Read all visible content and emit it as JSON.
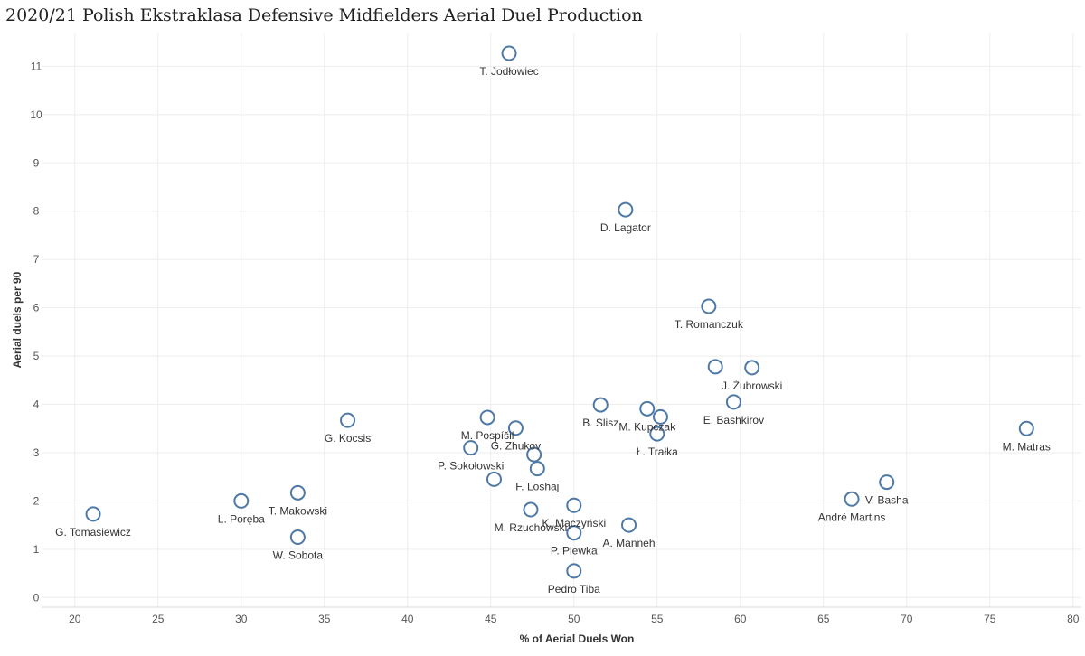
{
  "chart_data": {
    "type": "scatter",
    "title": "2020/21 Polish Ekstraklasa Defensive Midfielders Aerial Duel Production",
    "xlabel": "% of Aerial Duels Won",
    "ylabel": "Aerial duels per 90",
    "xlim": [
      18,
      80.5
    ],
    "ylim": [
      -0.2,
      11.7
    ],
    "xticks": [
      "20",
      "25",
      "30",
      "35",
      "40",
      "45",
      "50",
      "55",
      "60",
      "65",
      "70",
      "75",
      "80"
    ],
    "yticks": [
      "0",
      "1",
      "2",
      "3",
      "4",
      "5",
      "6",
      "7",
      "8",
      "9",
      "10",
      "11"
    ],
    "grid": true,
    "marker_color": "#4e79a7",
    "points": [
      {
        "label": "T. Jodłowiec",
        "x": 46.1,
        "y": 11.27
      },
      {
        "label": "D. Lagator",
        "x": 53.1,
        "y": 8.03
      },
      {
        "label": "T. Romanczuk",
        "x": 58.1,
        "y": 6.03
      },
      {
        "label": "J. Żubrowski",
        "x": 60.7,
        "y": 4.76
      },
      {
        "label": "",
        "x": 58.5,
        "y": 4.78
      },
      {
        "label": "M. Kupczak",
        "x": 54.4,
        "y": 3.91
      },
      {
        "label": "E. Bashkirov",
        "x": 59.6,
        "y": 4.05
      },
      {
        "label": "",
        "x": 55.2,
        "y": 3.74
      },
      {
        "label": "Ł. Trałka",
        "x": 55.0,
        "y": 3.39
      },
      {
        "label": "B. Slisz",
        "x": 51.6,
        "y": 3.99
      },
      {
        "label": "M. Pospíšil",
        "x": 44.8,
        "y": 3.73
      },
      {
        "label": "G. Zhukov",
        "x": 46.5,
        "y": 3.51
      },
      {
        "label": "G. Kocsis",
        "x": 36.4,
        "y": 3.67
      },
      {
        "label": "P. Sokołowski",
        "x": 43.8,
        "y": 3.1
      },
      {
        "label": "",
        "x": 47.6,
        "y": 2.96
      },
      {
        "label": "F. Loshaj",
        "x": 47.8,
        "y": 2.67
      },
      {
        "label": "",
        "x": 45.2,
        "y": 2.45
      },
      {
        "label": "M. Matras",
        "x": 77.2,
        "y": 3.5
      },
      {
        "label": "V. Basha",
        "x": 68.8,
        "y": 2.39
      },
      {
        "label": "André Martins",
        "x": 66.7,
        "y": 2.04
      },
      {
        "label": "K. Mączyński",
        "x": 50.0,
        "y": 1.91
      },
      {
        "label": "M. Rzuchowski",
        "x": 47.4,
        "y": 1.82
      },
      {
        "label": "A. Manneh",
        "x": 53.3,
        "y": 1.5
      },
      {
        "label": "P. Plewka",
        "x": 50.0,
        "y": 1.34
      },
      {
        "label": "Pedro Tiba",
        "x": 50.0,
        "y": 0.55
      },
      {
        "label": "T. Makowski",
        "x": 33.4,
        "y": 2.17
      },
      {
        "label": "L. Poręba",
        "x": 30.0,
        "y": 2.0
      },
      {
        "label": "W. Sobota",
        "x": 33.4,
        "y": 1.25
      },
      {
        "label": "G. Tomasiewicz",
        "x": 21.1,
        "y": 1.73
      }
    ]
  }
}
